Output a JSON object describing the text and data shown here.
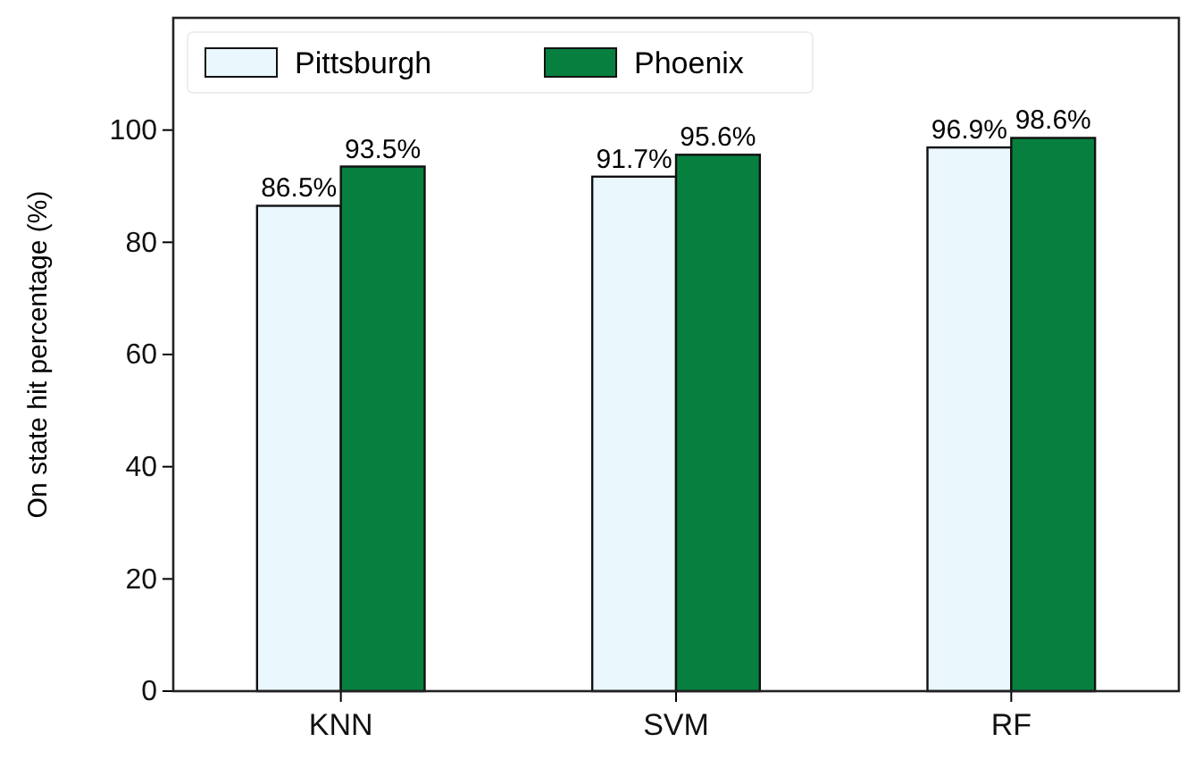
{
  "chart_data": {
    "type": "bar",
    "ylabel": "On state hit percentage (%)",
    "categories": [
      "KNN",
      "SVM",
      "RF"
    ],
    "series": [
      {
        "name": "Pittsburgh",
        "color": "#eaf7fd",
        "values": [
          86.5,
          91.7,
          96.9
        ],
        "value_labels": [
          "86.5%",
          "91.7%",
          "96.9%"
        ]
      },
      {
        "name": "Phoenix",
        "color": "#07803f",
        "values": [
          93.5,
          95.6,
          98.6
        ],
        "value_labels": [
          "93.5%",
          "95.6%",
          "98.6%"
        ]
      }
    ],
    "ylim": [
      0,
      120
    ],
    "yticks": [
      0,
      20,
      40,
      60,
      80,
      100
    ],
    "grid": false,
    "legend": "top left"
  }
}
